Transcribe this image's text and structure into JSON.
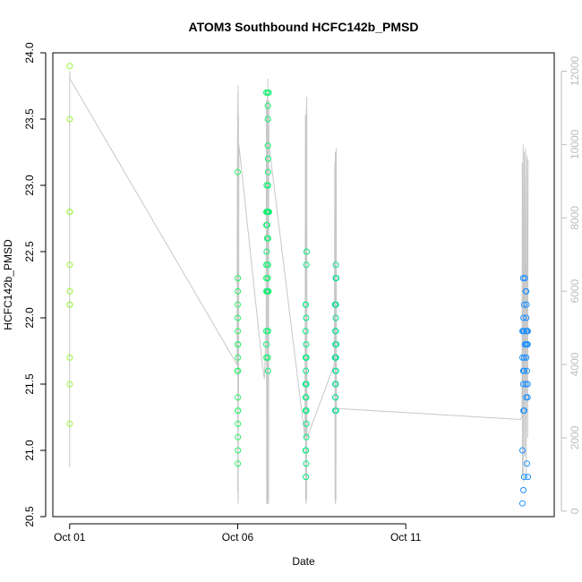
{
  "chart_data": {
    "type": "scatter",
    "title": "ATOM3 Southbound HCFC142b_PMSD",
    "xlabel": "Date",
    "ylabel": "HCFC142b_PMSD",
    "x_axis": {
      "type": "date",
      "range": [
        "2016-09-30T12:00",
        "2016-10-15T10:00"
      ],
      "ticks": [
        {
          "value": "2016-10-01",
          "label": "Oct 01"
        },
        {
          "value": "2016-10-06",
          "label": "Oct 06"
        },
        {
          "value": "2016-10-11",
          "label": "Oct 11"
        }
      ]
    },
    "y_axis_left": {
      "range": [
        20.5,
        24.0
      ],
      "ticks": [
        20.5,
        21.0,
        21.5,
        22.0,
        22.5,
        23.0,
        23.5,
        24.0
      ],
      "tick_labels": [
        "20.5",
        "21.0",
        "21.5",
        "22.0",
        "22.5",
        "23.0",
        "23.5",
        "24.0"
      ]
    },
    "y_axis_right": {
      "range": [
        -150,
        12500
      ],
      "ticks": [
        0,
        2000,
        4000,
        6000,
        8000,
        10000,
        12000
      ],
      "tick_labels": [
        "0",
        "2000",
        "4000",
        "6000",
        "8000",
        "10000",
        "12000"
      ],
      "color": "#bdbdbd"
    },
    "grid": false,
    "legend": "none",
    "altitude_color": "#c8c8c8",
    "point_colors": {
      "start": "#9cf53a",
      "end": "#1e90ff"
    },
    "series": [
      {
        "points": [
          [
            "2016-10-01T00:05",
            23.9
          ],
          [
            "2016-10-01T00:05",
            23.5
          ],
          [
            "2016-10-01T00:05",
            22.8
          ],
          [
            "2016-10-01T00:05",
            22.8
          ],
          [
            "2016-10-01T00:05",
            22.4
          ],
          [
            "2016-10-01T00:10",
            22.2
          ],
          [
            "2016-10-01T00:05",
            22.1
          ],
          [
            "2016-10-01T00:10",
            22.1
          ],
          [
            "2016-10-01T00:05",
            21.7
          ],
          [
            "2016-10-01T00:05",
            21.5
          ],
          [
            "2016-10-01T00:05",
            21.2
          ],
          [
            "2016-10-06T00:00",
            23.1
          ],
          [
            "2016-10-06T00:05",
            22.3
          ],
          [
            "2016-10-06T00:05",
            22.2
          ],
          [
            "2016-10-06T00:00",
            22.1
          ],
          [
            "2016-10-06T00:00",
            22.0
          ],
          [
            "2016-10-06T00:05",
            21.9
          ],
          [
            "2016-10-06T00:05",
            21.8
          ],
          [
            "2016-10-06T00:10",
            21.8
          ],
          [
            "2016-10-06T00:05",
            21.7
          ],
          [
            "2016-10-05T23:50",
            21.6
          ],
          [
            "2016-10-06T00:05",
            21.6
          ],
          [
            "2016-10-06T00:10",
            21.6
          ],
          [
            "2016-10-06T00:05",
            21.4
          ],
          [
            "2016-10-06T00:05",
            21.3
          ],
          [
            "2016-10-06T00:10",
            21.3
          ],
          [
            "2016-10-06T00:10",
            21.2
          ],
          [
            "2016-10-06T00:10",
            21.1
          ],
          [
            "2016-10-06T00:10",
            21.0
          ],
          [
            "2016-10-06T00:05",
            20.9
          ],
          [
            "2016-10-06T20:30",
            23.7
          ],
          [
            "2016-10-06T21:30",
            23.7
          ],
          [
            "2016-10-06T22:00",
            23.7
          ],
          [
            "2016-10-06T21:30",
            23.6
          ],
          [
            "2016-10-06T21:30",
            23.5
          ],
          [
            "2016-10-06T21:30",
            23.3
          ],
          [
            "2016-10-06T21:40",
            23.2
          ],
          [
            "2016-10-06T21:40",
            23.1
          ],
          [
            "2016-10-06T20:40",
            23.0
          ],
          [
            "2016-10-06T21:40",
            23.0
          ],
          [
            "2016-10-06T20:30",
            22.8
          ],
          [
            "2016-10-06T21:00",
            22.8
          ],
          [
            "2016-10-06T21:30",
            22.8
          ],
          [
            "2016-10-06T22:00",
            22.8
          ],
          [
            "2016-10-06T22:20",
            22.8
          ],
          [
            "2016-10-06T20:30",
            22.7
          ],
          [
            "2016-10-06T21:00",
            22.7
          ],
          [
            "2016-10-06T21:00",
            22.6
          ],
          [
            "2016-10-06T21:40",
            22.6
          ],
          [
            "2016-10-06T20:40",
            22.5
          ],
          [
            "2016-10-06T20:30",
            22.4
          ],
          [
            "2016-10-06T20:40",
            22.4
          ],
          [
            "2016-10-06T21:40",
            22.4
          ],
          [
            "2016-10-06T20:30",
            22.3
          ],
          [
            "2016-10-06T21:30",
            22.3
          ],
          [
            "2016-10-06T20:30",
            22.2
          ],
          [
            "2016-10-06T21:00",
            22.2
          ],
          [
            "2016-10-06T21:40",
            22.2
          ],
          [
            "2016-10-06T22:00",
            22.2
          ],
          [
            "2016-10-06T20:30",
            21.9
          ],
          [
            "2016-10-06T21:30",
            21.9
          ],
          [
            "2016-10-06T21:40",
            21.9
          ],
          [
            "2016-10-06T20:30",
            21.8
          ],
          [
            "2016-10-06T20:30",
            21.7
          ],
          [
            "2016-10-06T21:30",
            21.7
          ],
          [
            "2016-10-06T21:40",
            21.6
          ],
          [
            "2016-10-08T01:10",
            22.5
          ],
          [
            "2016-10-08T01:00",
            22.4
          ],
          [
            "2016-10-08T00:30",
            22.1
          ],
          [
            "2016-10-08T00:40",
            22.1
          ],
          [
            "2016-10-08T00:50",
            22.0
          ],
          [
            "2016-10-08T00:30",
            21.9
          ],
          [
            "2016-10-08T00:50",
            21.8
          ],
          [
            "2016-10-08T00:30",
            21.7
          ],
          [
            "2016-10-08T00:50",
            21.7
          ],
          [
            "2016-10-08T01:00",
            21.7
          ],
          [
            "2016-10-08T00:40",
            21.6
          ],
          [
            "2016-10-08T00:30",
            21.5
          ],
          [
            "2016-10-08T00:50",
            21.5
          ],
          [
            "2016-10-08T01:00",
            21.5
          ],
          [
            "2016-10-08T00:30",
            21.4
          ],
          [
            "2016-10-08T00:50",
            21.4
          ],
          [
            "2016-10-08T00:30",
            21.3
          ],
          [
            "2016-10-08T00:50",
            21.3
          ],
          [
            "2016-10-08T01:00",
            21.3
          ],
          [
            "2016-10-08T01:00",
            21.2
          ],
          [
            "2016-10-08T01:00",
            21.1
          ],
          [
            "2016-10-08T00:30",
            21.0
          ],
          [
            "2016-10-08T00:40",
            21.0
          ],
          [
            "2016-10-08T00:50",
            20.9
          ],
          [
            "2016-10-08T00:40",
            20.8
          ],
          [
            "2016-10-08T22:00",
            22.4
          ],
          [
            "2016-10-08T22:00",
            22.3
          ],
          [
            "2016-10-08T22:20",
            22.3
          ],
          [
            "2016-10-08T21:30",
            22.1
          ],
          [
            "2016-10-08T21:50",
            22.1
          ],
          [
            "2016-10-08T22:10",
            22.1
          ],
          [
            "2016-10-08T22:00",
            22.0
          ],
          [
            "2016-10-08T21:40",
            21.9
          ],
          [
            "2016-10-08T22:00",
            21.9
          ],
          [
            "2016-10-08T21:50",
            21.8
          ],
          [
            "2016-10-08T22:20",
            21.8
          ],
          [
            "2016-10-08T21:30",
            21.7
          ],
          [
            "2016-10-08T22:00",
            21.7
          ],
          [
            "2016-10-08T22:10",
            21.7
          ],
          [
            "2016-10-08T21:50",
            21.6
          ],
          [
            "2016-10-08T22:00",
            21.6
          ],
          [
            "2016-10-08T22:10",
            21.6
          ],
          [
            "2016-10-08T21:40",
            21.5
          ],
          [
            "2016-10-08T22:00",
            21.5
          ],
          [
            "2016-10-08T21:40",
            21.4
          ],
          [
            "2016-10-08T21:50",
            21.4
          ],
          [
            "2016-10-08T21:40",
            21.3
          ],
          [
            "2016-10-08T22:10",
            21.3
          ],
          [
            "2016-10-14T11:50",
            22.3
          ],
          [
            "2016-10-14T13:00",
            22.3
          ],
          [
            "2016-10-14T13:40",
            22.2
          ],
          [
            "2016-10-14T14:00",
            22.2
          ],
          [
            "2016-10-14T12:30",
            22.1
          ],
          [
            "2016-10-14T14:10",
            22.1
          ],
          [
            "2016-10-14T12:00",
            22.0
          ],
          [
            "2016-10-14T14:00",
            22.0
          ],
          [
            "2016-10-14T11:20",
            21.9
          ],
          [
            "2016-10-14T11:50",
            21.9
          ],
          [
            "2016-10-14T12:30",
            21.9
          ],
          [
            "2016-10-14T14:00",
            21.9
          ],
          [
            "2016-10-14T14:30",
            21.9
          ],
          [
            "2016-10-14T15:10",
            21.9
          ],
          [
            "2016-10-14T13:00",
            21.8
          ],
          [
            "2016-10-14T13:40",
            21.8
          ],
          [
            "2016-10-14T14:30",
            21.8
          ],
          [
            "2016-10-14T15:00",
            21.8
          ],
          [
            "2016-10-14T11:20",
            21.7
          ],
          [
            "2016-10-14T12:30",
            21.7
          ],
          [
            "2016-10-14T14:00",
            21.7
          ],
          [
            "2016-10-14T14:30",
            21.6
          ],
          [
            "2016-10-14T11:50",
            21.6
          ],
          [
            "2016-10-14T12:30",
            21.6
          ],
          [
            "2016-10-14T15:00",
            21.5
          ],
          [
            "2016-10-14T11:50",
            21.5
          ],
          [
            "2016-10-14T13:40",
            21.5
          ],
          [
            "2016-10-14T14:00",
            21.4
          ],
          [
            "2016-10-14T15:00",
            21.4
          ],
          [
            "2016-10-14T12:00",
            21.3
          ],
          [
            "2016-10-14T12:30",
            21.3
          ],
          [
            "2016-10-14T11:20",
            21.0
          ],
          [
            "2016-10-14T14:30",
            20.9
          ],
          [
            "2016-10-14T12:30",
            20.8
          ],
          [
            "2016-10-14T15:10",
            20.8
          ],
          [
            "2016-10-14T12:00",
            20.7
          ],
          [
            "2016-10-14T11:20",
            20.6
          ]
        ]
      }
    ],
    "altitude_trace": [
      [
        "2016-10-01T00:00",
        1200
      ],
      [
        "2016-10-01T00:01",
        8000
      ],
      [
        "2016-10-01T00:02",
        11000
      ],
      [
        "2016-10-01T00:03",
        11800
      ],
      [
        "2016-10-01T00:05",
        12000
      ],
      [
        "2016-10-01T00:10",
        11800
      ],
      [
        "2016-10-05T23:30",
        4000
      ],
      [
        "2016-10-05T23:40",
        9000
      ],
      [
        "2016-10-06T00:00",
        11000
      ],
      [
        "2016-10-06T00:05",
        500
      ],
      [
        "2016-10-06T00:10",
        11400
      ],
      [
        "2016-10-06T00:15",
        200
      ],
      [
        "2016-10-06T00:20",
        11600
      ],
      [
        "2016-10-06T00:25",
        300
      ],
      [
        "2016-10-06T00:30",
        10800
      ],
      [
        "2016-10-06T00:40",
        3000
      ],
      [
        "2016-10-06T00:50",
        10000
      ],
      [
        "2016-10-06T17:00",
        4200
      ],
      [
        "2016-10-06T19:00",
        3600
      ],
      [
        "2016-10-06T20:20",
        5000
      ],
      [
        "2016-10-06T20:30",
        11200
      ],
      [
        "2016-10-06T20:40",
        200
      ],
      [
        "2016-10-06T20:50",
        11000
      ],
      [
        "2016-10-06T21:00",
        300
      ],
      [
        "2016-10-06T21:10",
        11400
      ],
      [
        "2016-10-06T21:20",
        200
      ],
      [
        "2016-10-06T21:30",
        11800
      ],
      [
        "2016-10-06T21:40",
        300
      ],
      [
        "2016-10-06T21:50",
        11000
      ],
      [
        "2016-10-06T22:00",
        200
      ],
      [
        "2016-10-06T22:10",
        11200
      ],
      [
        "2016-10-06T22:20",
        10000
      ],
      [
        "2016-10-08T00:00",
        2000
      ],
      [
        "2016-10-08T00:20",
        10800
      ],
      [
        "2016-10-08T00:30",
        300
      ],
      [
        "2016-10-08T00:40",
        10500
      ],
      [
        "2016-10-08T00:50",
        200
      ],
      [
        "2016-10-08T01:00",
        11000
      ],
      [
        "2016-10-08T01:10",
        300
      ],
      [
        "2016-10-08T01:20",
        11300
      ],
      [
        "2016-10-08T01:30",
        2000
      ],
      [
        "2016-10-08T21:00",
        4000
      ],
      [
        "2016-10-08T21:20",
        9500
      ],
      [
        "2016-10-08T21:30",
        300
      ],
      [
        "2016-10-08T21:40",
        9800
      ],
      [
        "2016-10-08T21:50",
        200
      ],
      [
        "2016-10-08T22:00",
        9600
      ],
      [
        "2016-10-08T22:10",
        300
      ],
      [
        "2016-10-08T22:20",
        9900
      ],
      [
        "2016-10-08T22:30",
        2800
      ],
      [
        "2016-10-14T10:00",
        2500
      ],
      [
        "2016-10-14T11:00",
        2600
      ],
      [
        "2016-10-14T11:10",
        9500
      ],
      [
        "2016-10-14T11:20",
        1000
      ],
      [
        "2016-10-14T11:50",
        10000
      ],
      [
        "2016-10-14T12:10",
        800
      ],
      [
        "2016-10-14T12:40",
        9800
      ],
      [
        "2016-10-14T13:00",
        1500
      ],
      [
        "2016-10-14T13:30",
        9900
      ],
      [
        "2016-10-14T14:00",
        1000
      ],
      [
        "2016-10-14T14:30",
        9700
      ],
      [
        "2016-10-14T15:00",
        2000
      ],
      [
        "2016-10-14T15:20",
        9600
      ]
    ]
  }
}
